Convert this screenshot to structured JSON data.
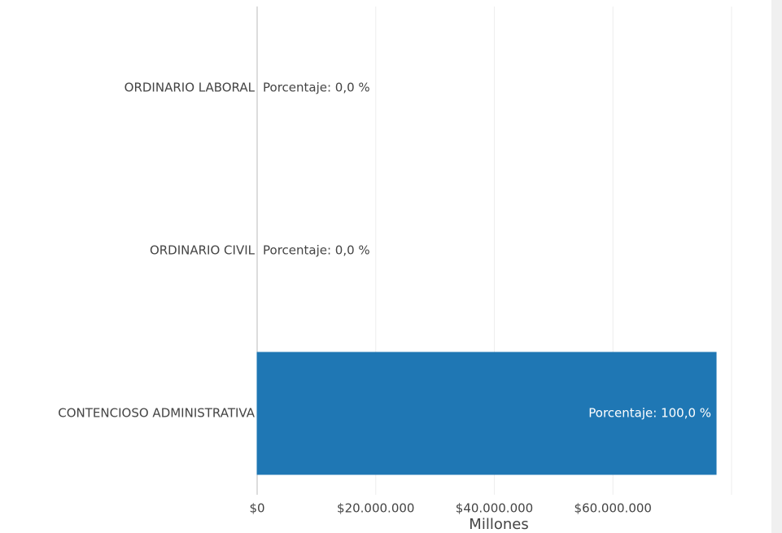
{
  "chart_data": {
    "type": "hbar",
    "categories": [
      "ORDINARIO LABORAL",
      "ORDINARIO CIVIL",
      "CONTENCIOSO ADMINISTRATIVA"
    ],
    "values": [
      0,
      0,
      77400000
    ],
    "colors": [
      "#2ca02c",
      "#ff7f0e",
      "#1f77b4"
    ],
    "labels": [
      "Porcentaje:  0,0 %",
      "Porcentaje:  0,0 %",
      "Porcentaje:  100,0 %"
    ],
    "xlabel": "Millones",
    "xlim": [
      0,
      80000000
    ],
    "xticks": [
      {
        "value": 0,
        "label": "$0"
      },
      {
        "value": 20000000,
        "label": "$20.000.000"
      },
      {
        "value": 40000000,
        "label": "$40.000.000"
      },
      {
        "value": 60000000,
        "label": "$60.000.000"
      },
      80000000
    ],
    "grid": true
  }
}
